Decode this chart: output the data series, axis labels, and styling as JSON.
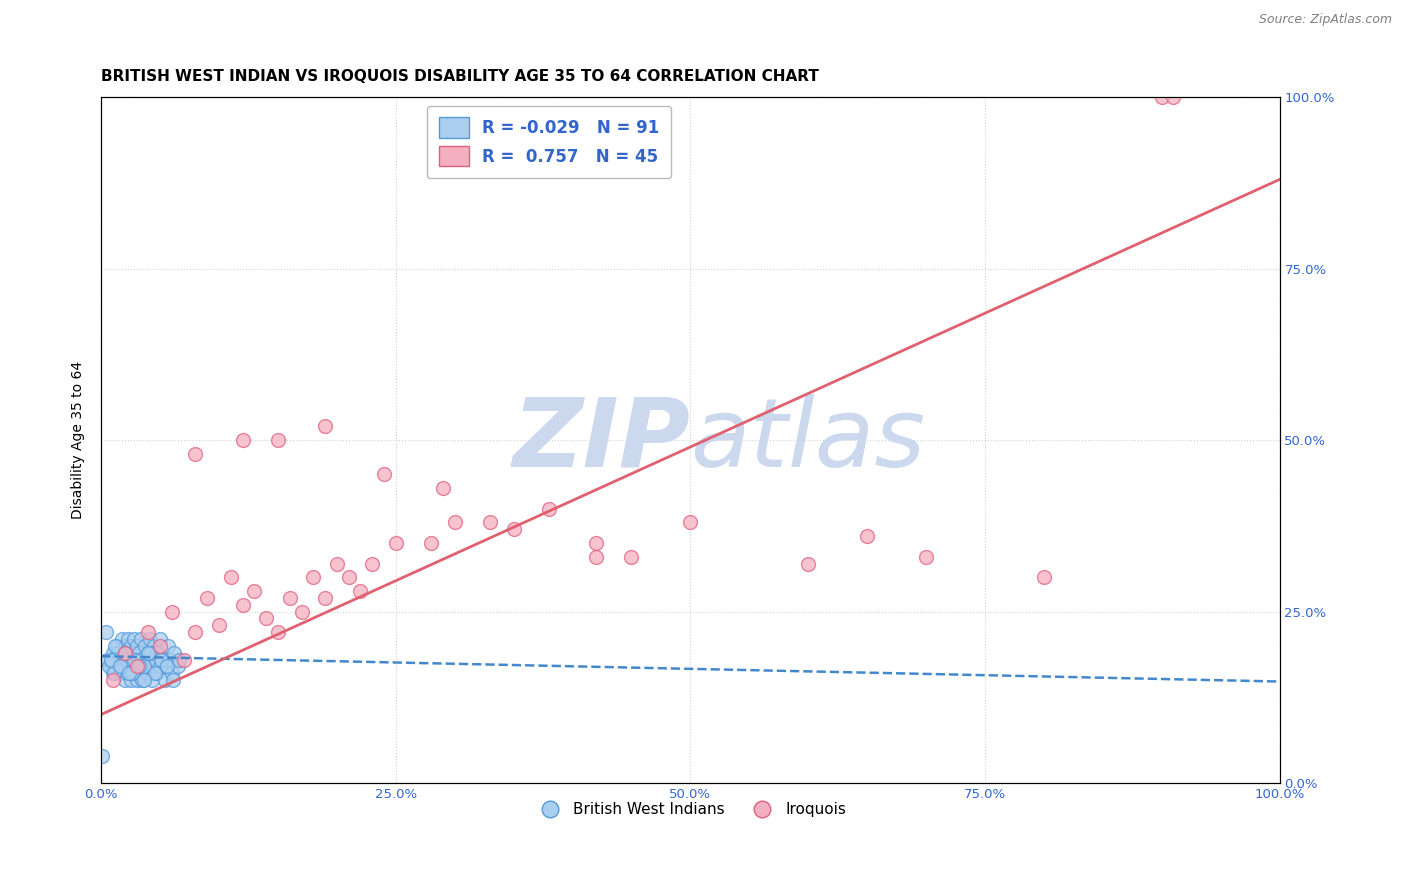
{
  "title": "BRITISH WEST INDIAN VS IROQUOIS DISABILITY AGE 35 TO 64 CORRELATION CHART",
  "source": "Source: ZipAtlas.com",
  "ylabel": "Disability Age 35 to 64",
  "xlim": [
    0,
    1.0
  ],
  "ylim": [
    0,
    1.0
  ],
  "xticks": [
    0.0,
    0.25,
    0.5,
    0.75,
    1.0
  ],
  "xtick_labels": [
    "0.0%",
    "25.0%",
    "50.0%",
    "75.0%",
    "100.0%"
  ],
  "ytick_positions": [
    0.0,
    0.25,
    0.5,
    0.75,
    1.0
  ],
  "right_ytick_labels": [
    "0.0%",
    "25.0%",
    "50.0%",
    "75.0%",
    "100.0%"
  ],
  "blue_color": "#aacfee",
  "pink_color": "#f4afc0",
  "blue_edge_color": "#5599dd",
  "pink_edge_color": "#e06080",
  "blue_line_color": "#4488cc",
  "pink_line_color": "#e06070",
  "legend_color": "#3366cc",
  "background_color": "#ffffff",
  "grid_color": "#cccccc",
  "watermark_color": "#ccd8ee",
  "legend_R_blue": "-0.029",
  "legend_N_blue": "91",
  "legend_R_pink": "0.757",
  "legend_N_pink": "45",
  "blue_scatter_x": [
    0.005,
    0.008,
    0.01,
    0.01,
    0.012,
    0.013,
    0.015,
    0.015,
    0.016,
    0.018,
    0.018,
    0.019,
    0.02,
    0.02,
    0.02,
    0.021,
    0.022,
    0.022,
    0.023,
    0.023,
    0.024,
    0.024,
    0.025,
    0.025,
    0.025,
    0.026,
    0.027,
    0.027,
    0.028,
    0.028,
    0.029,
    0.03,
    0.03,
    0.03,
    0.031,
    0.032,
    0.032,
    0.033,
    0.034,
    0.035,
    0.035,
    0.036,
    0.037,
    0.038,
    0.039,
    0.04,
    0.04,
    0.041,
    0.042,
    0.043,
    0.044,
    0.045,
    0.046,
    0.047,
    0.048,
    0.05,
    0.05,
    0.052,
    0.054,
    0.055,
    0.057,
    0.058,
    0.06,
    0.062,
    0.065,
    0.007,
    0.009,
    0.011,
    0.014,
    0.017,
    0.021,
    0.026,
    0.031,
    0.036,
    0.041,
    0.046,
    0.051,
    0.056,
    0.061,
    0.066,
    0.004,
    0.008,
    0.012,
    0.016,
    0.02,
    0.024,
    0.028,
    0.032,
    0.036,
    0.04,
    0.001
  ],
  "blue_scatter_y": [
    0.18,
    0.17,
    0.19,
    0.16,
    0.18,
    0.2,
    0.17,
    0.19,
    0.16,
    0.18,
    0.21,
    0.17,
    0.15,
    0.18,
    0.2,
    0.17,
    0.19,
    0.16,
    0.18,
    0.21,
    0.17,
    0.19,
    0.15,
    0.17,
    0.2,
    0.18,
    0.16,
    0.19,
    0.17,
    0.21,
    0.18,
    0.15,
    0.17,
    0.2,
    0.18,
    0.16,
    0.19,
    0.17,
    0.21,
    0.18,
    0.15,
    0.17,
    0.2,
    0.18,
    0.16,
    0.19,
    0.17,
    0.21,
    0.18,
    0.15,
    0.17,
    0.2,
    0.18,
    0.16,
    0.19,
    0.17,
    0.21,
    0.18,
    0.15,
    0.17,
    0.2,
    0.18,
    0.16,
    0.19,
    0.17,
    0.17,
    0.18,
    0.16,
    0.19,
    0.17,
    0.18,
    0.16,
    0.18,
    0.17,
    0.19,
    0.16,
    0.18,
    0.17,
    0.15,
    0.18,
    0.22,
    0.18,
    0.2,
    0.17,
    0.19,
    0.16,
    0.18,
    0.17,
    0.15,
    0.19,
    0.04
  ],
  "pink_scatter_x": [
    0.01,
    0.02,
    0.03,
    0.04,
    0.05,
    0.06,
    0.07,
    0.08,
    0.09,
    0.1,
    0.11,
    0.12,
    0.13,
    0.14,
    0.15,
    0.16,
    0.17,
    0.18,
    0.19,
    0.2,
    0.21,
    0.22,
    0.23,
    0.25,
    0.28,
    0.3,
    0.33,
    0.38,
    0.08,
    0.12,
    0.15,
    0.19,
    0.24,
    0.29,
    0.35,
    0.42,
    0.5,
    0.6,
    0.65,
    0.7,
    0.8,
    0.9,
    0.91,
    0.42,
    0.45
  ],
  "pink_scatter_y": [
    0.15,
    0.19,
    0.17,
    0.22,
    0.2,
    0.25,
    0.18,
    0.22,
    0.27,
    0.23,
    0.3,
    0.26,
    0.28,
    0.24,
    0.22,
    0.27,
    0.25,
    0.3,
    0.27,
    0.32,
    0.3,
    0.28,
    0.32,
    0.35,
    0.35,
    0.38,
    0.38,
    0.4,
    0.48,
    0.5,
    0.5,
    0.52,
    0.45,
    0.43,
    0.37,
    0.33,
    0.38,
    0.32,
    0.36,
    0.33,
    0.3,
    1.0,
    1.0,
    0.35,
    0.33
  ],
  "blue_trend_x": [
    0.0,
    1.0
  ],
  "blue_trend_y": [
    0.185,
    0.148
  ],
  "pink_trend_x": [
    0.0,
    1.0
  ],
  "pink_trend_y": [
    0.1,
    0.88
  ],
  "marker_size": 100,
  "title_fontsize": 11,
  "axis_label_fontsize": 10,
  "tick_fontsize": 9.5,
  "legend_fontsize": 12
}
